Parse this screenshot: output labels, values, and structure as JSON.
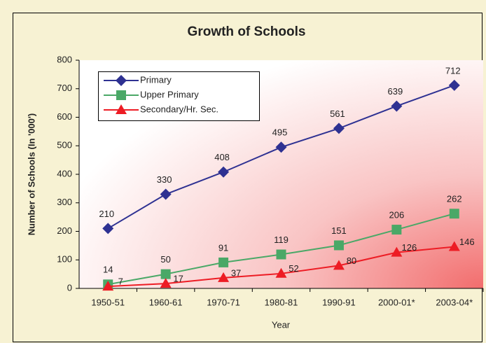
{
  "chart_data": {
    "type": "line",
    "title": "Growth of Schools",
    "x_label": "Year",
    "y_label": "Number of Schools (In '000')",
    "categories": [
      "1950-51",
      "1960-61",
      "1970-71",
      "1980-81",
      "1990-91",
      "2000-01*",
      "2003-04*"
    ],
    "series": [
      {
        "name": "Primary",
        "color": "#2e3192",
        "marker": "diamond",
        "values": [
          210,
          330,
          408,
          495,
          561,
          639,
          712
        ]
      },
      {
        "name": "Upper Primary",
        "color": "#4aa867",
        "marker": "square",
        "values": [
          14,
          50,
          91,
          119,
          151,
          206,
          262
        ]
      },
      {
        "name": "Secondary/Hr. Sec.",
        "color": "#ed1c24",
        "marker": "triangle",
        "values": [
          7,
          17,
          37,
          52,
          80,
          126,
          146
        ]
      }
    ],
    "ylim": [
      0,
      800
    ],
    "yticks": [
      0,
      100,
      200,
      300,
      400,
      500,
      600,
      700,
      800
    ],
    "legend": "upper left"
  }
}
